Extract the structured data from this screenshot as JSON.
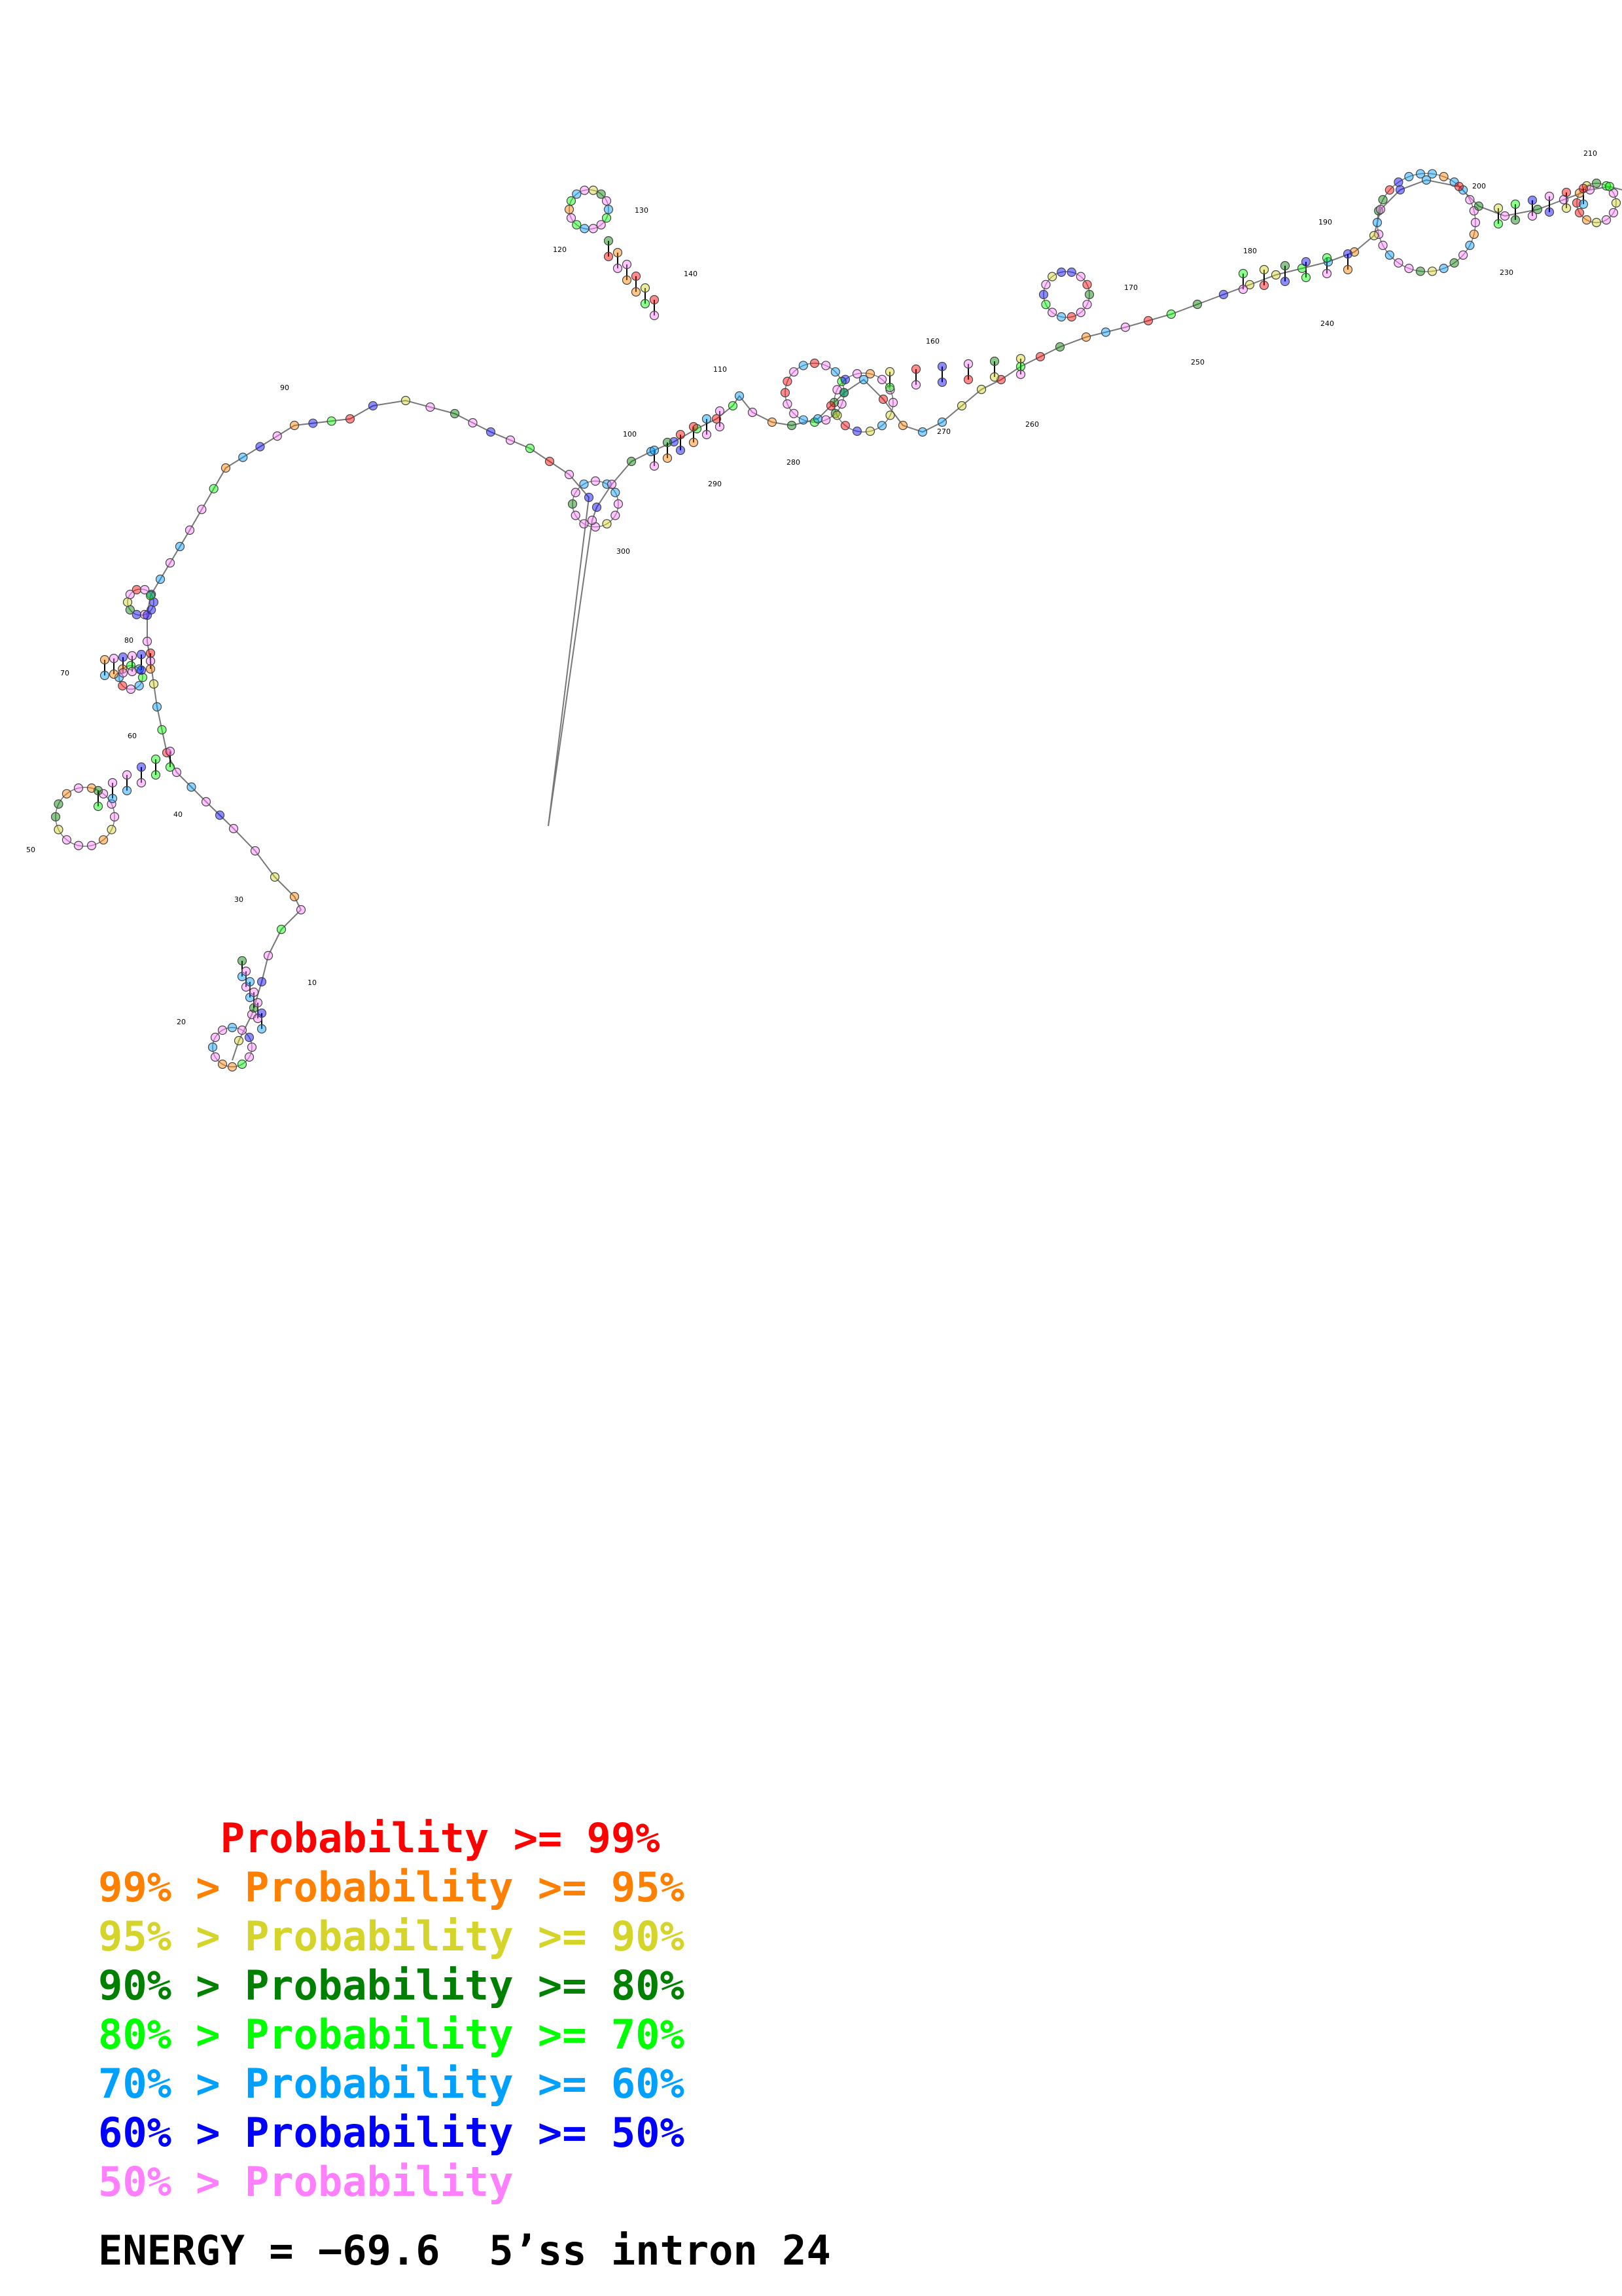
{
  "diagram": {
    "backbone_color": "#777777",
    "pair_color": "#000000",
    "nucleotide_colors": {
      "red": "#ff0000",
      "orange": "#ff8000",
      "yellow": "#d4d42a",
      "dark_green": "#008000",
      "green": "#00ff00",
      "cyan": "#00a0ff",
      "blue": "#0000ff",
      "pink": "#ff80ff"
    },
    "position_labels": [
      "10",
      "20",
      "30",
      "40",
      "50",
      "60",
      "70",
      "80",
      "90",
      "100",
      "110",
      "120",
      "130",
      "140",
      "160",
      "170",
      "180",
      "190",
      "200",
      "210",
      "230",
      "240",
      "250",
      "260",
      "270",
      "280",
      "290",
      "300"
    ]
  },
  "legend": [
    {
      "prefix": "     ",
      "text": "Probability >= 99%",
      "color": "#ff0000"
    },
    {
      "prefix": "99% > ",
      "text": "Probability >= 95%",
      "color": "#ff8000"
    },
    {
      "prefix": "95% > ",
      "text": "Probability >= 90%",
      "color": "#d4d42a"
    },
    {
      "prefix": "90% > ",
      "text": "Probability >= 80%",
      "color": "#008000"
    },
    {
      "prefix": "80% > ",
      "text": "Probability >= 70%",
      "color": "#00ff00"
    },
    {
      "prefix": "70% > ",
      "text": "Probability >= 60%",
      "color": "#00a0ff"
    },
    {
      "prefix": "60% > ",
      "text": "Probability >= 50%",
      "color": "#0000ff"
    },
    {
      "prefix": "50% > ",
      "text": "Probability",
      "color": "#ff80ff"
    }
  ],
  "energy": "ENERGY = −69.6  5’ss intron 24"
}
